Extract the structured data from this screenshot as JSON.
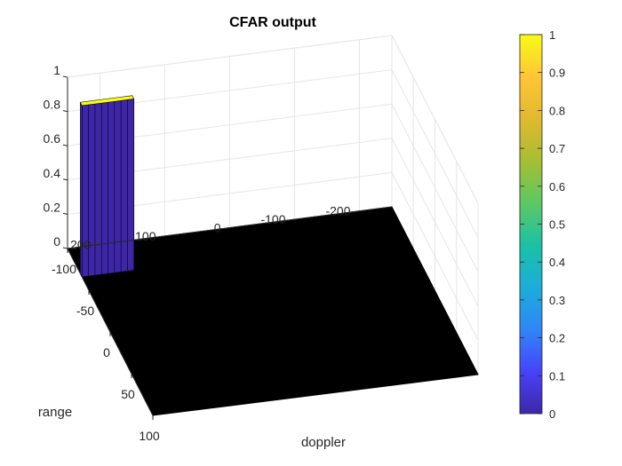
{
  "chart_data": {
    "type": "surface3d",
    "title": "CFAR output",
    "xlabel": "doppler",
    "ylabel": "range",
    "zlabel": "",
    "x_ticks": [
      "-100",
      "-50",
      "0",
      "50",
      "100"
    ],
    "y_ticks": [
      "-200",
      "-100",
      "0",
      "100",
      "200"
    ],
    "z_ticks": [
      "0",
      "0.2",
      "0.4",
      "0.6",
      "0.8",
      "1"
    ],
    "xlim": [
      -100,
      100
    ],
    "ylim": [
      -250,
      250
    ],
    "zlim": [
      0,
      1
    ],
    "grid": true,
    "colormap": "parula",
    "surface_color": "#000000",
    "peak": {
      "doppler": [
        -70,
        -66
      ],
      "range": [
        170,
        250
      ],
      "value": 1
    },
    "colorbar": {
      "ticks": [
        "0",
        "0.1",
        "0.2",
        "0.3",
        "0.4",
        "0.5",
        "0.6",
        "0.7",
        "0.8",
        "0.9",
        "1"
      ],
      "colors": [
        "#3e26a8",
        "#4743f8",
        "#2e87f7",
        "#1cadd9",
        "#1ac1a5",
        "#5cc863",
        "#a6be33",
        "#e1b92e",
        "#fec636",
        "#f9fb15"
      ]
    }
  }
}
